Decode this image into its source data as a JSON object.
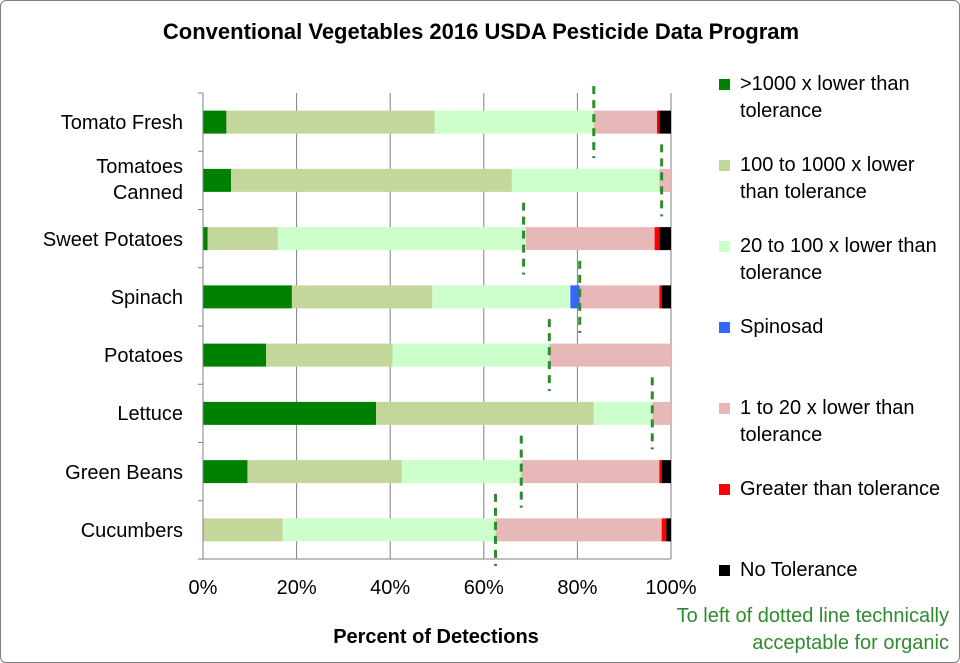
{
  "chart_data": {
    "type": "bar",
    "stacked": true,
    "orientation": "horizontal",
    "title": "Conventional Vegetables 2016 USDA Pesticide Data Program",
    "xlabel": "Percent of Detections",
    "ylabel": "",
    "xlim": [
      0,
      100
    ],
    "grid": true,
    "legend_position": "right",
    "x_ticks": [
      "0%",
      "20%",
      "40%",
      "60%",
      "80%",
      "100%"
    ],
    "categories": [
      "Tomato Fresh",
      "Tomatoes\nCanned",
      "Sweet Potatoes",
      "Spinach",
      "Potatoes",
      "Lettuce",
      "Green Beans",
      "Cucumbers"
    ],
    "series": [
      {
        "name": ">1000 x lower than tolerance",
        "color": "#008000",
        "values": [
          5,
          6,
          1,
          19,
          13.5,
          37,
          9.5,
          0
        ]
      },
      {
        "name": "100 to 1000 x lower than tolerance",
        "color": "#c4d79b",
        "values": [
          44.5,
          60,
          15,
          30,
          27,
          46.5,
          33,
          17
        ]
      },
      {
        "name": "20 to 100 x lower than tolerance",
        "color": "#ccffcc",
        "values": [
          34,
          31.5,
          53,
          29.5,
          33.5,
          12.5,
          25.5,
          45.5
        ]
      },
      {
        "name": "Spinosad",
        "color": "#3366ff",
        "values": [
          0,
          0,
          0,
          2,
          0,
          0,
          0,
          0
        ]
      },
      {
        "name": "1 to 20 x lower than tolerance",
        "color": "#e6b9b8",
        "values": [
          13.5,
          2.5,
          27.5,
          17,
          26,
          4,
          29.5,
          35.5
        ]
      },
      {
        "name": "Greater than tolerance",
        "color": "#ff0000",
        "values": [
          0.5,
          0,
          1,
          0.5,
          0,
          0,
          0.5,
          1
        ]
      },
      {
        "name": "No Tolerance",
        "color": "#000000",
        "values": [
          2.5,
          0,
          2.5,
          2,
          0,
          0,
          2,
          1
        ]
      }
    ],
    "organic_threshold": [
      83.5,
      98,
      68.5,
      80.5,
      74,
      96,
      68,
      62.5
    ],
    "annotation": "To left of dotted line technically acceptable for organic"
  },
  "colors": {
    "gridline": "#808080",
    "threshold": "#2e8b2e"
  }
}
